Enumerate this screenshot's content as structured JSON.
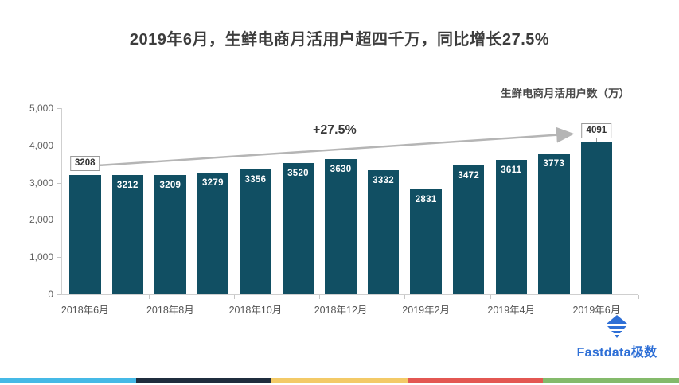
{
  "chart_data": {
    "type": "bar",
    "title": "2019年6月，生鲜电商月活用户超四千万，同比增长27.5%",
    "legend": "生鲜电商月活用户数（万）",
    "values": [
      3208,
      3212,
      3209,
      3279,
      3356,
      3520,
      3630,
      3332,
      2831,
      3472,
      3611,
      3773,
      4091
    ],
    "x_tick_labels": [
      "2018年6月",
      "2018年8月",
      "2018年10月",
      "2018年12月",
      "2019年2月",
      "2019年4月",
      "2019年6月"
    ],
    "y_tick_labels": [
      "0",
      "1,000",
      "2,000",
      "3,000",
      "4,000",
      "5,000"
    ],
    "ylim": [
      0,
      5000
    ],
    "annotation": "+27.5%",
    "boxed_value_indices": [
      0,
      12
    ],
    "bar_color": "#114f63",
    "arrow_color": "#b5b5b5",
    "grid": false,
    "legend_position": "top-right"
  },
  "footer": {
    "logo_text": "Fastdata极数",
    "logo_color": "#2e6fd6",
    "stripe_colors": [
      "#45b9e6",
      "#1f2d3d",
      "#f3ca67",
      "#e35752",
      "#84ba6b"
    ]
  }
}
